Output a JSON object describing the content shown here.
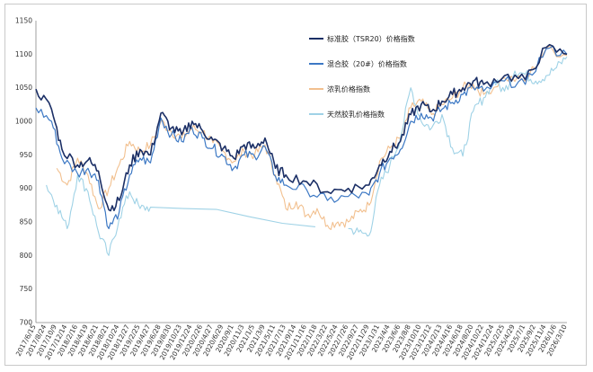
{
  "chart_data": {
    "type": "line",
    "ylim": [
      700,
      1150
    ],
    "yticks": [
      700,
      750,
      800,
      850,
      900,
      950,
      1000,
      1050,
      1100,
      1150
    ],
    "grid": false,
    "legend_position": "top-right",
    "x_tick_labels": [
      "2017/6/15",
      "2017/8/24",
      "2017/10/9",
      "2017/12/14",
      "2018/2/16",
      "2018/4/19",
      "2018/6/21",
      "2018/8/21",
      "2018/10/24",
      "2018/12/27",
      "2019/2/25",
      "2019/4/27",
      "2019/6/28",
      "2019/8/30",
      "2019/10/23",
      "2019/12/24",
      "2020/2/26",
      "2020/4/27",
      "2020/6/29",
      "2020/9/1",
      "2020/11/3",
      "2021/1/5",
      "2021/3/9",
      "2021/5/11",
      "2021/7/13",
      "2021/9/14",
      "2021/11/16",
      "2022/1/18",
      "2022/3/22",
      "2022/5/24",
      "2022/7/26",
      "2022/9/27",
      "2022/11/29",
      "2023/1/31",
      "2023/4/4",
      "2023/6/6",
      "2023/8/8",
      "2023/10/10",
      "2023/12/12",
      "2024/2/13",
      "2024/4/16",
      "2024/6/18",
      "2024/8/20",
      "2024/10/22",
      "2024/12/24",
      "2025/2/25",
      "2025/4/29",
      "2025/7/1",
      "2025/9/2",
      "2025/11/4",
      "2026/1/6",
      "2026/3/10"
    ],
    "series": [
      {
        "name": "标准胶（TSR20）价格指数",
        "color": "#1b2f66",
        "width": 1.6,
        "x": [
          0,
          1.5,
          2.5,
          4,
          5,
          6,
          7,
          8,
          9,
          10,
          11,
          12,
          13,
          14,
          15,
          16,
          17,
          18,
          19,
          20,
          21,
          22,
          23,
          24,
          26,
          28,
          30,
          32,
          33,
          34,
          35,
          36,
          37,
          38,
          39,
          40,
          41,
          42,
          43,
          45,
          47,
          49,
          51
        ],
        "y": [
          1048,
          1018,
          958,
          935,
          942,
          926,
          868,
          882,
          935,
          958,
          950,
          1012,
          990,
          980,
          1000,
          986,
          972,
          960,
          945,
          965,
          960,
          975,
          930,
          920,
          910,
          895,
          900,
          905,
          935,
          955,
          970,
          1010,
          1025,
          1015,
          1030,
          1040,
          1050,
          1060,
          1055,
          1068,
          1062,
          1110,
          1100
        ]
      },
      {
        "name": "混合胶（20#）价格指数",
        "color": "#3c78c4",
        "width": 1.2,
        "x": [
          0,
          1.5,
          2.5,
          4,
          5,
          6,
          7,
          8,
          9,
          10,
          11,
          12,
          13,
          14,
          15,
          16,
          17,
          18,
          19,
          20,
          21,
          22,
          23,
          24,
          26,
          28,
          30,
          32,
          33,
          34,
          35,
          36,
          37,
          38,
          39,
          40,
          41,
          42,
          43,
          45,
          47,
          49,
          51
        ],
        "y": [
          1020,
          1000,
          945,
          922,
          930,
          912,
          840,
          865,
          920,
          945,
          938,
          1005,
          980,
          970,
          990,
          975,
          960,
          948,
          930,
          950,
          948,
          962,
          918,
          905,
          898,
          882,
          888,
          890,
          922,
          945,
          958,
          1000,
          1012,
          1005,
          1018,
          1028,
          1040,
          1050,
          1045,
          1060,
          1055,
          1108,
          1100
        ]
      },
      {
        "name": "浓乳价格指数",
        "color": "#f2c08f",
        "width": 1.1,
        "x": [
          2,
          3,
          4,
          5,
          6,
          7,
          8,
          9,
          10,
          11,
          12,
          13,
          14,
          15,
          16,
          17,
          18,
          19,
          20,
          21,
          22,
          23,
          24,
          25,
          26,
          27,
          28,
          29,
          30,
          31,
          32,
          33,
          34,
          35,
          36,
          37,
          38,
          39,
          40,
          41,
          42,
          43,
          45,
          47,
          49,
          51
        ],
        "y": [
          930,
          905,
          945,
          920,
          870,
          900,
          935,
          970,
          955,
          965,
          1000,
          985,
          975,
          990,
          985,
          968,
          955,
          940,
          955,
          950,
          965,
          920,
          870,
          880,
          860,
          870,
          845,
          850,
          850,
          865,
          875,
          940,
          960,
          975,
          1020,
          1030,
          1010,
          1025,
          1035,
          1050,
          1055,
          1040,
          1065,
          1060,
          1108,
          1098
        ]
      },
      {
        "name": "天然胶乳价格指数",
        "color": "#9fd2e6",
        "width": 1.1,
        "x": [
          1,
          2,
          3,
          4,
          5,
          6,
          7,
          8,
          9,
          10,
          11,
          30,
          31,
          32,
          33,
          34,
          35,
          36,
          37,
          38,
          39,
          40,
          41,
          42,
          43,
          44,
          45,
          46,
          47,
          48,
          49,
          50,
          51
        ],
        "y": [
          905,
          875,
          840,
          920,
          895,
          835,
          800,
          855,
          895,
          870,
          872,
          840,
          835,
          830,
          905,
          935,
          975,
          1050,
          1000,
          990,
          1010,
          960,
          948,
          1015,
          1035,
          1060,
          1045,
          1075,
          1070,
          1060,
          1068,
          1080,
          1096
        ]
      }
    ]
  }
}
